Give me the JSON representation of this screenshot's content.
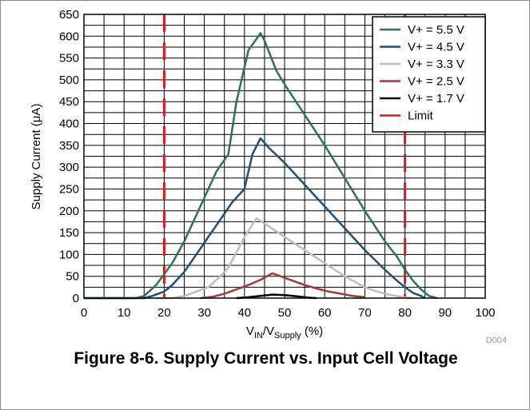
{
  "figure": {
    "caption": "Figure 8-6. Supply Current vs. Input Cell Voltage",
    "code": "D004"
  },
  "chart_data": {
    "type": "line",
    "xlabel_main": "V",
    "xlabel_sub1": "IN",
    "xlabel_mid": "/V",
    "xlabel_sub2": "Supply",
    "xlabel_tail": " (%)",
    "ylabel_pre": "Supply Current (",
    "ylabel_mu": "μ",
    "ylabel_post": "A)",
    "xlim": [
      0,
      100
    ],
    "ylim": [
      0,
      650
    ],
    "x_ticks": [
      "0",
      "10",
      "20",
      "30",
      "40",
      "50",
      "60",
      "70",
      "80",
      "90",
      "100"
    ],
    "y_ticks": [
      "0",
      "50",
      "100",
      "150",
      "200",
      "250",
      "300",
      "350",
      "400",
      "450",
      "500",
      "550",
      "600",
      "650"
    ],
    "grid": true,
    "legend_position": "top-right",
    "series": [
      {
        "name": "V+ = 5.5 V",
        "color": "#2e7350",
        "points": [
          [
            0,
            0
          ],
          [
            13,
            0
          ],
          [
            15,
            5
          ],
          [
            18,
            30
          ],
          [
            20,
            55
          ],
          [
            22,
            80
          ],
          [
            25,
            130
          ],
          [
            28,
            190
          ],
          [
            31,
            250
          ],
          [
            33,
            290
          ],
          [
            36,
            330
          ],
          [
            38,
            450
          ],
          [
            41,
            568
          ],
          [
            44,
            607
          ],
          [
            45,
            590
          ],
          [
            48,
            520
          ],
          [
            50,
            490
          ],
          [
            55,
            420
          ],
          [
            60,
            350
          ],
          [
            65,
            275
          ],
          [
            70,
            200
          ],
          [
            75,
            130
          ],
          [
            78,
            95
          ],
          [
            80,
            65
          ],
          [
            82,
            40
          ],
          [
            84,
            20
          ],
          [
            86,
            5
          ],
          [
            88,
            0
          ]
        ]
      },
      {
        "name": "V+ = 4.5 V",
        "color": "#1f4e79",
        "points": [
          [
            0,
            0
          ],
          [
            15,
            0
          ],
          [
            17,
            5
          ],
          [
            20,
            15
          ],
          [
            22,
            30
          ],
          [
            25,
            60
          ],
          [
            28,
            100
          ],
          [
            31,
            140
          ],
          [
            34,
            180
          ],
          [
            37,
            220
          ],
          [
            40,
            250
          ],
          [
            42,
            330
          ],
          [
            44,
            366
          ],
          [
            46,
            345
          ],
          [
            50,
            310
          ],
          [
            55,
            260
          ],
          [
            60,
            210
          ],
          [
            65,
            160
          ],
          [
            70,
            110
          ],
          [
            75,
            65
          ],
          [
            78,
            40
          ],
          [
            80,
            25
          ],
          [
            82,
            12
          ],
          [
            84,
            5
          ],
          [
            85,
            0
          ]
        ]
      },
      {
        "name": "V+ = 3.3 V",
        "color": "#bdbdbd",
        "points": [
          [
            18,
            0
          ],
          [
            22,
            0
          ],
          [
            25,
            5
          ],
          [
            28,
            15
          ],
          [
            31,
            25
          ],
          [
            34,
            50
          ],
          [
            36,
            70
          ],
          [
            40,
            140
          ],
          [
            43,
            183
          ],
          [
            46,
            165
          ],
          [
            50,
            140
          ],
          [
            55,
            110
          ],
          [
            60,
            80
          ],
          [
            65,
            50
          ],
          [
            70,
            25
          ],
          [
            73,
            15
          ],
          [
            76,
            8
          ],
          [
            79,
            3
          ],
          [
            82,
            0
          ]
        ]
      },
      {
        "name": "V+ = 2.5 V",
        "color": "#a33a3a",
        "points": [
          [
            29,
            0
          ],
          [
            32,
            3
          ],
          [
            35,
            10
          ],
          [
            38,
            20
          ],
          [
            41,
            30
          ],
          [
            44,
            42
          ],
          [
            47,
            57
          ],
          [
            49,
            50
          ],
          [
            52,
            40
          ],
          [
            55,
            30
          ],
          [
            58,
            22
          ],
          [
            61,
            15
          ],
          [
            64,
            10
          ],
          [
            67,
            5
          ],
          [
            70,
            2
          ]
        ]
      },
      {
        "name": "V+ = 1.7 V",
        "color": "#000000",
        "points": [
          [
            38,
            0
          ],
          [
            41,
            2
          ],
          [
            44,
            5
          ],
          [
            47,
            8
          ],
          [
            50,
            7
          ],
          [
            53,
            4
          ],
          [
            56,
            1
          ],
          [
            58,
            0
          ]
        ]
      },
      {
        "name": "Limit",
        "color": "#e8141c",
        "dashed": true,
        "vertical_x": [
          20,
          80
        ]
      }
    ]
  }
}
